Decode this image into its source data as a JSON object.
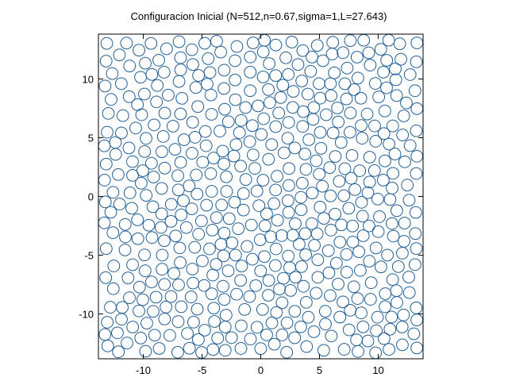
{
  "chart_data": {
    "type": "scatter",
    "title": "Configuracion Inicial (N=512,n=0.67,sigma=1,L=27.643)",
    "xlabel": "",
    "ylabel": "",
    "xlim": [
      -13.8215,
      13.8215
    ],
    "ylim": [
      -13.8215,
      13.8215
    ],
    "xticks": [
      -10,
      -5,
      0,
      5,
      10
    ],
    "yticks": [
      -10,
      -5,
      0,
      5,
      10
    ],
    "xtick_labels": [
      "-10",
      "-5",
      "0",
      "5",
      "10"
    ],
    "ytick_labels": [
      "-10",
      "-5",
      "0",
      "5",
      "10"
    ],
    "grid": false,
    "marker": "open-circle",
    "marker_diameter": 1,
    "marker_color": "#1f5f99",
    "series": [
      {
        "name": "particles",
        "generator": "random-sequential-addition",
        "n_points": 512,
        "number_density": 0.67,
        "sigma": 1,
        "box_length": 27.643,
        "seed": 20240611
      }
    ]
  }
}
